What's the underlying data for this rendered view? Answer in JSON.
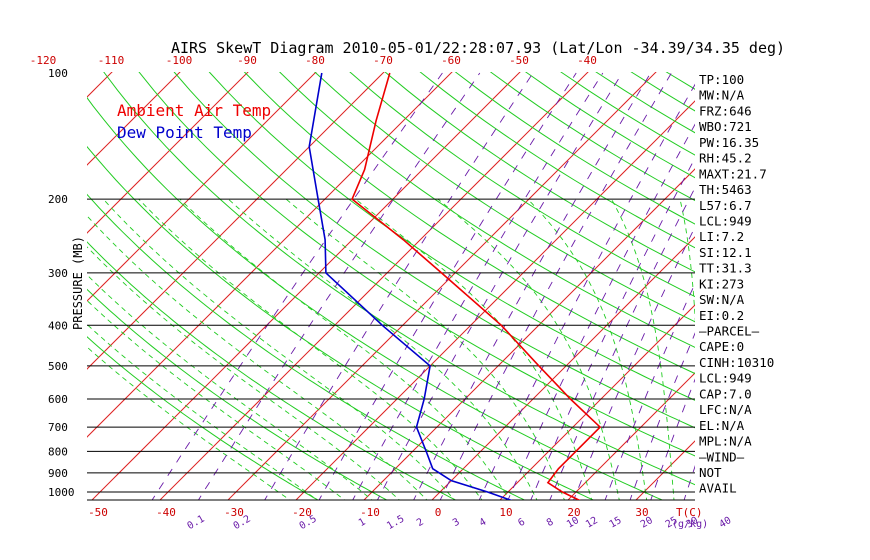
{
  "title": "AIRS SkewT Diagram 2010-05-01/22:28:07.93 (Lat/Lon -34.39/34.35 deg)",
  "colors": {
    "ambient": "#ee0000",
    "dewpoint": "#0000cc",
    "isotherm": "#dd2222",
    "dry_adiabat": "#22cc22",
    "moist_adiabat": "#22cc22",
    "mixing_ratio": "#6a1ba8",
    "axis_labels_temp": "#cc0000",
    "grid": "#000000"
  },
  "legend": [
    {
      "label": "Ambient Air Temp",
      "color": "#ee0000"
    },
    {
      "label": "Dew Point Temp",
      "color": "#0000cc"
    }
  ],
  "chart_data": {
    "type": "line",
    "title": "AIRS SkewT Diagram 2010-05-01/22:28:07.93 (Lat/Lon -34.39/34.35 deg)",
    "ylabel": "PRESSURE (MB)",
    "xlabel": "T(C)",
    "y_scale": "log",
    "ylim": [
      1000,
      100
    ],
    "pressure_ticks": [
      "100",
      "200",
      "300",
      "400",
      "500",
      "600",
      "700",
      "800",
      "900",
      "1000"
    ],
    "temp_ticks_top": [
      "-120",
      "-110",
      "-100",
      "-90",
      "-80",
      "-70",
      "-60",
      "-50",
      "-40"
    ],
    "temp_ticks_bottom": [
      "-50",
      "-40",
      "-30",
      "-20",
      "-10",
      "0",
      "10",
      "20",
      "30"
    ],
    "bottom_unit": "T(C)",
    "mixing_ratio_labels": [
      "0.1",
      "0.2",
      "0.5",
      "1",
      "1.5",
      "2",
      "3",
      "4",
      "6",
      "8",
      "10",
      "12",
      "15",
      "20",
      "25",
      "30",
      "40"
    ],
    "mixing_ratio_unit": "(g/kg)",
    "series": [
      {
        "name": "Ambient Air Temp",
        "color": "#ee0000",
        "points": [
          {
            "p": 1050,
            "t": 22.0
          },
          {
            "p": 1000,
            "t": 18.0
          },
          {
            "p": 950,
            "t": 14.5
          },
          {
            "p": 880,
            "t": 14.0
          },
          {
            "p": 800,
            "t": 14.0
          },
          {
            "p": 700,
            "t": 14.0
          },
          {
            "p": 600,
            "t": 5.5
          },
          {
            "p": 500,
            "t": -4.0
          },
          {
            "p": 400,
            "t": -15.5
          },
          {
            "p": 300,
            "t": -32.0
          },
          {
            "p": 250,
            "t": -42.5
          },
          {
            "p": 200,
            "t": -56.0
          },
          {
            "p": 170,
            "t": -58.5
          },
          {
            "p": 130,
            "t": -64.0
          },
          {
            "p": 100,
            "t": -69.0
          }
        ]
      },
      {
        "name": "Dew Point Temp",
        "color": "#0000cc",
        "points": [
          {
            "p": 1050,
            "t": 12.0
          },
          {
            "p": 1000,
            "t": 7.0
          },
          {
            "p": 940,
            "t": 0.0
          },
          {
            "p": 880,
            "t": -4.5
          },
          {
            "p": 800,
            "t": -8.0
          },
          {
            "p": 700,
            "t": -13.0
          },
          {
            "p": 600,
            "t": -16.0
          },
          {
            "p": 500,
            "t": -20.0
          },
          {
            "p": 400,
            "t": -33.0
          },
          {
            "p": 300,
            "t": -49.0
          },
          {
            "p": 250,
            "t": -54.0
          },
          {
            "p": 200,
            "t": -61.0
          },
          {
            "p": 150,
            "t": -70.0
          },
          {
            "p": 100,
            "t": -79.0
          }
        ]
      }
    ]
  },
  "indices": [
    "TP:100",
    "MW:N/A",
    "FRZ:646",
    "WBO:721",
    "PW:16.35",
    "RH:45.2",
    "MAXT:21.7",
    "TH:5463",
    "L57:6.7",
    "LCL:949",
    "LI:7.2",
    "SI:12.1",
    "TT:31.3",
    "KI:273",
    "SW:N/A",
    "EI:0.2",
    "—PARCEL—",
    "CAPE:0",
    "CINH:10310",
    "LCL:949",
    "CAP:7.0",
    "LFC:N/A",
    "EL:N/A",
    "MPL:N/A",
    "—WIND—",
    "NOT",
    "AVAIL"
  ]
}
